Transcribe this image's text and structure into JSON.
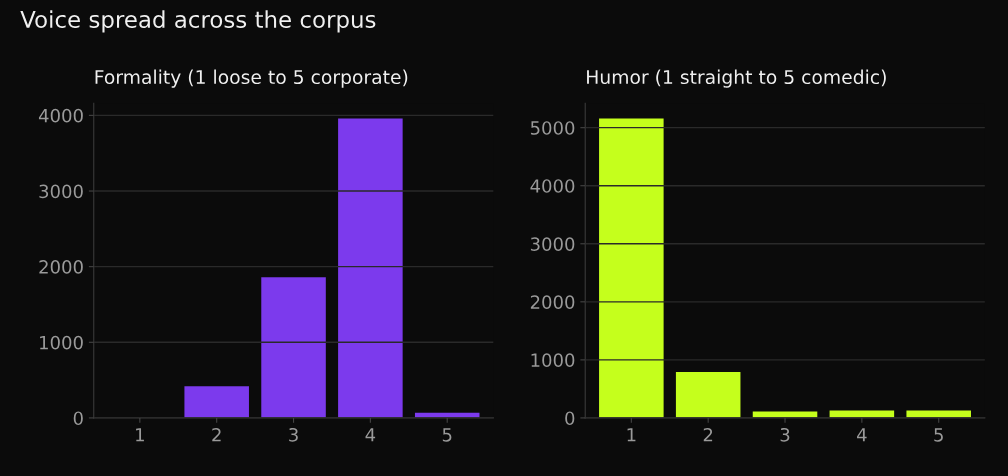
{
  "chart_data": [
    {
      "type": "bar",
      "title": "Formality (1 loose to 5 corporate)",
      "annotations": [
        "Voice spread across the corpus"
      ],
      "categories": [
        "1",
        "2",
        "3",
        "4",
        "5"
      ],
      "values": [
        0,
        420,
        1860,
        3960,
        70
      ],
      "color": "#7c3aed",
      "ylim": [
        0,
        4160
      ],
      "yticks": [
        0,
        1000,
        2000,
        3000,
        4000
      ],
      "grid": "y"
    },
    {
      "type": "bar",
      "title": "Humor (1 straight to 5 comedic)",
      "categories": [
        "1",
        "2",
        "3",
        "4",
        "5"
      ],
      "values": [
        5160,
        790,
        110,
        130,
        130
      ],
      "color": "#c5ff1c",
      "ylim": [
        0,
        5420
      ],
      "yticks": [
        0,
        1000,
        2000,
        3000,
        4000,
        5000
      ],
      "grid": "y"
    }
  ]
}
